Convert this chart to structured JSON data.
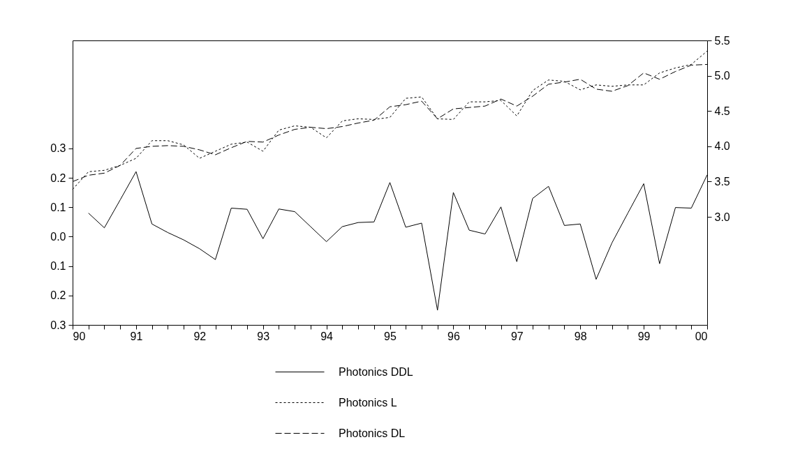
{
  "chart_data": {
    "type": "line",
    "x": [
      1990,
      1990.25,
      1990.5,
      1990.75,
      1991,
      1991.25,
      1991.5,
      1991.75,
      1992,
      1992.25,
      1992.5,
      1992.75,
      1993,
      1993.25,
      1993.5,
      1993.75,
      1994,
      1994.25,
      1994.5,
      1994.75,
      1995,
      1995.25,
      1995.5,
      1995.75,
      1996,
      1996.25,
      1996.5,
      1996.75,
      1997,
      1997.25,
      1997.5,
      1997.75,
      1998,
      1998.25,
      1998.5,
      1998.75,
      1999,
      1999.25,
      1999.5,
      1999.75,
      2000
    ],
    "series": [
      {
        "name": "Photonics DDL",
        "color": "#000000",
        "line_style": "solid",
        "values": [
          null,
          0.08,
          0.03,
          0.125,
          0.221,
          0.043,
          0.014,
          -0.011,
          -0.041,
          -0.078,
          0.097,
          0.093,
          -0.007,
          0.094,
          0.085,
          0.034,
          -0.017,
          0.034,
          0.048,
          0.05,
          0.184,
          0.032,
          0.046,
          -0.25,
          0.15,
          0.022,
          0.009,
          0.101,
          -0.085,
          0.13,
          0.171,
          0.038,
          0.043,
          -0.145,
          -0.021,
          0.08,
          0.18,
          -0.092,
          0.099,
          0.097,
          0.21
        ]
      },
      {
        "name": "Photonics L",
        "color": "#000000",
        "line_style": "dashed",
        "axis": "y2",
        "values": [
          3.39,
          3.64,
          3.66,
          3.73,
          3.83,
          4.08,
          4.08,
          4.02,
          3.83,
          3.93,
          4.03,
          4.06,
          3.93,
          4.23,
          4.29,
          4.27,
          4.12,
          4.36,
          4.39,
          4.38,
          4.41,
          4.68,
          4.7,
          4.39,
          4.38,
          4.63,
          4.63,
          4.65,
          4.43,
          4.79,
          4.94,
          4.92,
          4.8,
          4.87,
          4.85,
          4.87,
          4.87,
          5.04,
          5.11,
          5.16,
          5.35
        ]
      },
      {
        "name": "Photonics DL",
        "color": "#000000",
        "line_style": "dashed",
        "axis": "y2",
        "values": [
          3.5,
          3.59,
          3.62,
          3.73,
          3.97,
          4.0,
          4.01,
          4.0,
          3.95,
          3.88,
          3.98,
          4.07,
          4.06,
          4.16,
          4.24,
          4.27,
          4.25,
          4.28,
          4.33,
          4.37,
          4.56,
          4.59,
          4.64,
          4.39,
          4.53,
          4.55,
          4.57,
          4.67,
          4.57,
          4.71,
          4.88,
          4.91,
          4.95,
          4.81,
          4.78,
          4.86,
          5.04,
          4.95,
          5.06,
          5.15,
          5.16
        ]
      }
    ],
    "xlim": [
      1990,
      2000
    ],
    "xticks": [
      {
        "value": 1990,
        "label": "90"
      },
      {
        "value": 1990.25,
        "label": null
      },
      {
        "value": 1990.5,
        "label": null
      },
      {
        "value": 1990.75,
        "label": null
      },
      {
        "value": 1991,
        "label": "91"
      },
      {
        "value": 1991.25,
        "label": null
      },
      {
        "value": 1991.5,
        "label": null
      },
      {
        "value": 1991.75,
        "label": null
      },
      {
        "value": 1992,
        "label": "92"
      },
      {
        "value": 1992.25,
        "label": null
      },
      {
        "value": 1992.5,
        "label": null
      },
      {
        "value": 1992.75,
        "label": null
      },
      {
        "value": 1993,
        "label": "93"
      },
      {
        "value": 1993.25,
        "label": null
      },
      {
        "value": 1993.5,
        "label": null
      },
      {
        "value": 1993.75,
        "label": null
      },
      {
        "value": 1994,
        "label": "94"
      },
      {
        "value": 1994.25,
        "label": null
      },
      {
        "value": 1994.5,
        "label": null
      },
      {
        "value": 1994.75,
        "label": null
      },
      {
        "value": 1995,
        "label": "95"
      },
      {
        "value": 1995.25,
        "label": null
      },
      {
        "value": 1995.5,
        "label": null
      },
      {
        "value": 1995.75,
        "label": null
      },
      {
        "value": 1996,
        "label": "96"
      },
      {
        "value": 1996.25,
        "label": null
      },
      {
        "value": 1996.5,
        "label": null
      },
      {
        "value": 1996.75,
        "label": null
      },
      {
        "value": 1997,
        "label": "97"
      },
      {
        "value": 1997.25,
        "label": null
      },
      {
        "value": 1997.5,
        "label": null
      },
      {
        "value": 1997.75,
        "label": null
      },
      {
        "value": 1998,
        "label": "98"
      },
      {
        "value": 1998.25,
        "label": null
      },
      {
        "value": 1998.5,
        "label": null
      },
      {
        "value": 1998.75,
        "label": null
      },
      {
        "value": 1999,
        "label": "99"
      },
      {
        "value": 1999.25,
        "label": null
      },
      {
        "value": 1999.5,
        "label": null
      },
      {
        "value": 1999.75,
        "label": null
      },
      {
        "value": 2000,
        "label": "00"
      }
    ],
    "ylim": [
      -0.3,
      0.667
    ],
    "yticks": [
      {
        "value": -0.3,
        "label": "0.3"
      },
      {
        "value": -0.2,
        "label": "0.2"
      },
      {
        "value": -0.1,
        "label": "0.1"
      },
      {
        "value": 0,
        "label": "0.0"
      },
      {
        "value": 0.1,
        "label": "0.1"
      },
      {
        "value": 0.2,
        "label": "0.2"
      },
      {
        "value": 0.3,
        "label": "0.3"
      }
    ],
    "y2lim": [
      1.47,
      5.5
    ],
    "y2ticks": [
      {
        "value": 3,
        "label": "3.0"
      },
      {
        "value": 3.5,
        "label": "3.5"
      },
      {
        "value": 4,
        "label": "4.0"
      },
      {
        "value": 4.5,
        "label": "4.5"
      },
      {
        "value": 5,
        "label": "5.0"
      },
      {
        "value": 5.5,
        "label": "5.5"
      }
    ],
    "grid": false,
    "legend": "bottom"
  }
}
